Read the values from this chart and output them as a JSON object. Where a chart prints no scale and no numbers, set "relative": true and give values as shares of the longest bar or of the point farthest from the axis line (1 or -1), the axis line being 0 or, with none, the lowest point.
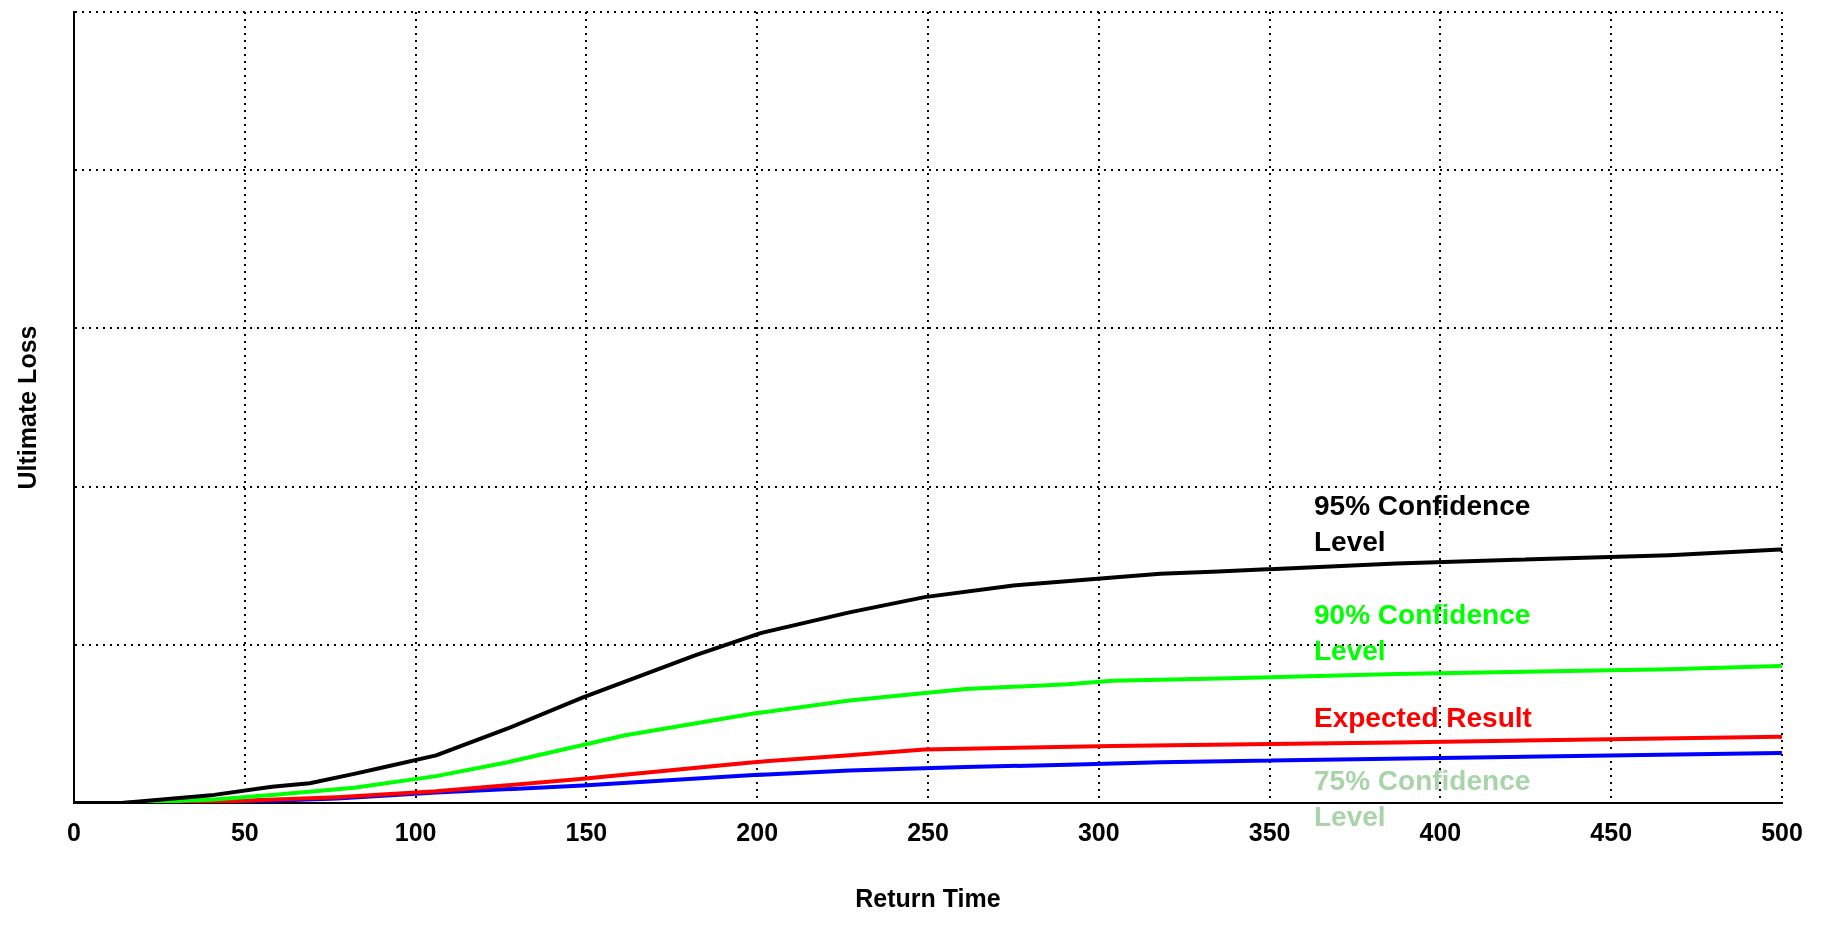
{
  "chart_data": {
    "type": "line",
    "xlabel": "Return Time",
    "ylabel": "Ultimate Loss",
    "relative": true,
    "xlim": [
      0,
      500
    ],
    "xticks": [
      0,
      50,
      100,
      150,
      200,
      250,
      300,
      350,
      400,
      450,
      500
    ],
    "grid": true,
    "legend": false,
    "marker": "none",
    "line_style": "solid",
    "series": [
      {
        "name": "95% Confidence Level",
        "color": "#000000",
        "x": [
          0,
          14,
          41,
          58,
          69,
          82,
          91,
          106,
          127,
          149,
          182,
          201,
          227,
          249,
          275,
          318,
          335,
          387,
          422,
          467,
          500
        ],
        "values": [
          0,
          0,
          0.032,
          0.064,
          0.078,
          0.115,
          0.142,
          0.188,
          0.294,
          0.417,
          0.583,
          0.67,
          0.752,
          0.812,
          0.858,
          0.904,
          0.913,
          0.945,
          0.959,
          0.977,
          1
        ]
      },
      {
        "name": "90% Confidence Level",
        "color": "#00ff00",
        "x": [
          0,
          14,
          41,
          58,
          82,
          106,
          127,
          149,
          161,
          199,
          227,
          261,
          291,
          304,
          335,
          387,
          467,
          500
        ],
        "values": [
          0,
          0,
          0.014,
          0.032,
          0.06,
          0.106,
          0.161,
          0.229,
          0.266,
          0.353,
          0.404,
          0.45,
          0.468,
          0.482,
          0.491,
          0.509,
          0.528,
          0.541
        ]
      },
      {
        "name": "Expected Result",
        "color": "#ff0000",
        "x": [
          0,
          14,
          41,
          77,
          106,
          149,
          199,
          227,
          249,
          304,
          387,
          500
        ],
        "values": [
          0,
          0,
          0.005,
          0.023,
          0.046,
          0.096,
          0.161,
          0.188,
          0.211,
          0.225,
          0.239,
          0.261
        ]
      },
      {
        "name": "75% Confidence Level",
        "color": "#0000ff",
        "x": [
          0,
          14,
          58,
          77,
          106,
          149,
          199,
          227,
          261,
          291,
          318,
          500
        ],
        "values": [
          0,
          0,
          0.009,
          0.018,
          0.041,
          0.069,
          0.11,
          0.128,
          0.142,
          0.151,
          0.161,
          0.197
        ]
      }
    ]
  }
}
